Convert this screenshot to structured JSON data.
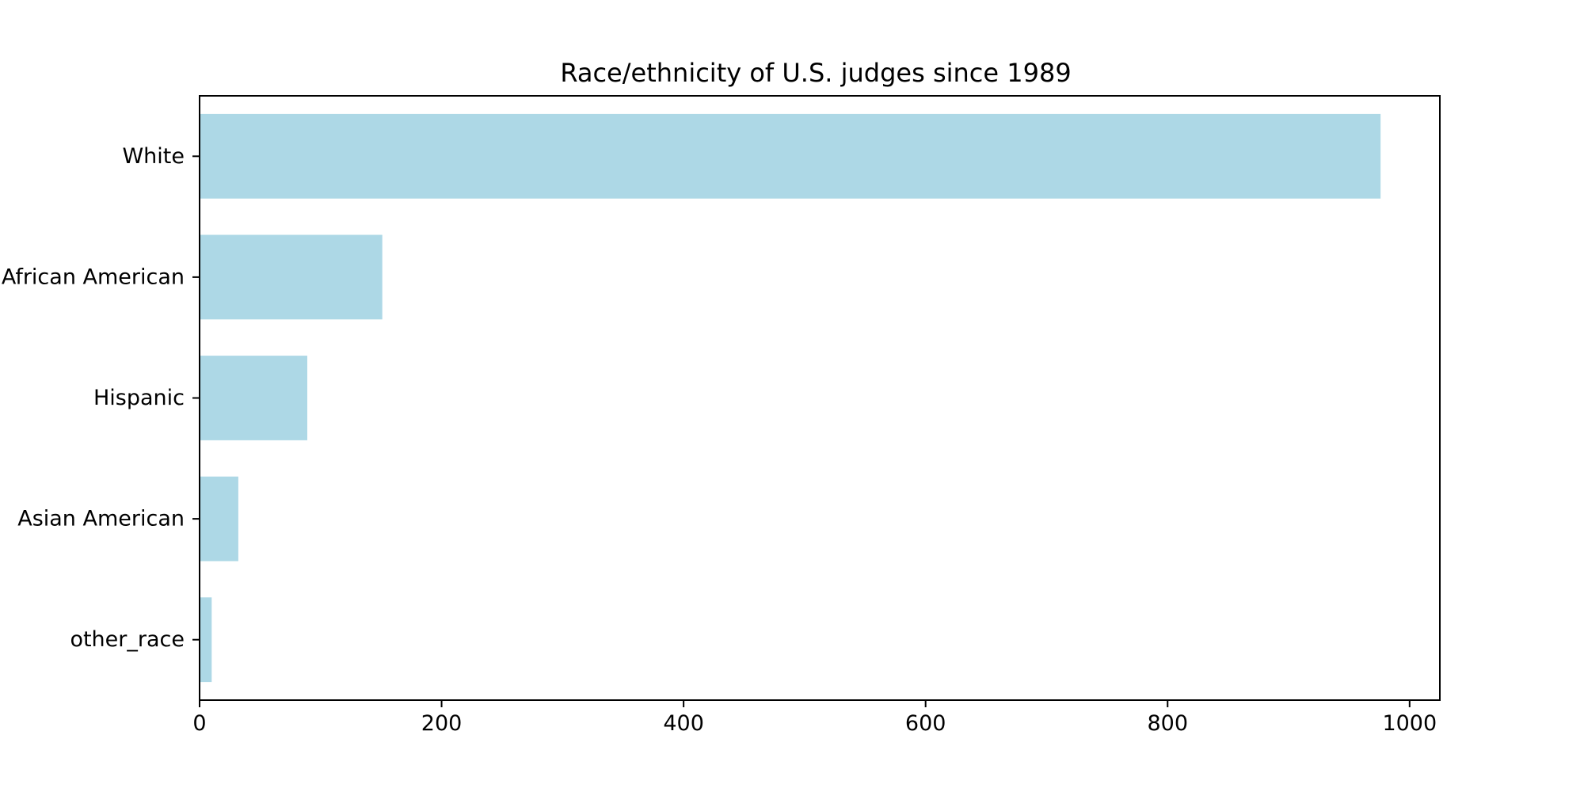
{
  "chart_data": {
    "type": "bar",
    "orientation": "horizontal",
    "title": "Race/ethnicity of U.S. judges since 1989",
    "xlabel": "",
    "ylabel": "",
    "categories": [
      "White",
      "African American",
      "Hispanic",
      "Asian American",
      "other_race"
    ],
    "values": [
      976,
      151,
      89,
      32,
      10
    ],
    "xlim": [
      0,
      1025
    ],
    "xticks": [
      0,
      200,
      400,
      600,
      800,
      1000
    ],
    "grid": false,
    "bar_color": "#add8e6"
  }
}
